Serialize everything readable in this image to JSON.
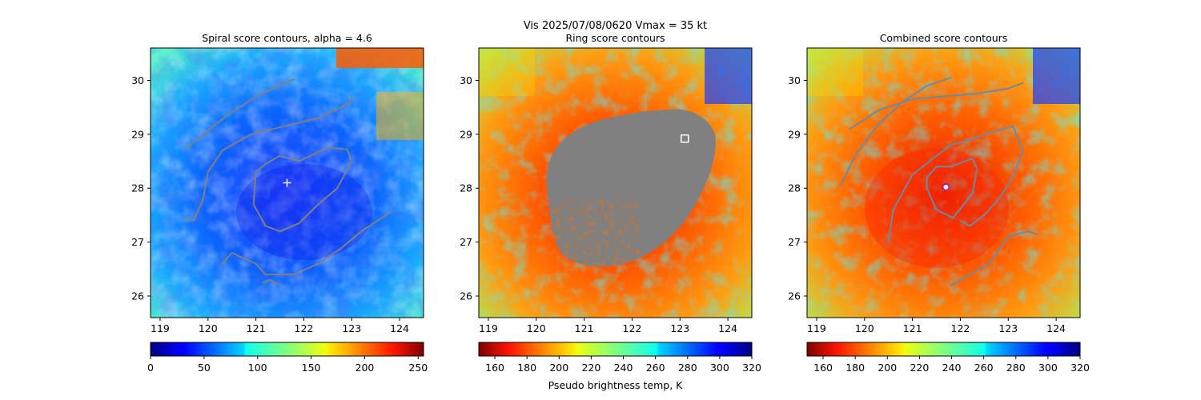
{
  "suptitle_line1": "Vis  2025/07/08/0620    Vmax = 35 kt",
  "colorbar_label": "Pseudo brightness temp, K",
  "chart_data": [
    {
      "type": "heatmap",
      "title": "Spiral score contours, alpha =  4.6",
      "colormap": "jet",
      "xlim": [
        118.8,
        124.5
      ],
      "ylim": [
        25.6,
        30.6
      ],
      "xticks": [
        119,
        120,
        121,
        122,
        123,
        124
      ],
      "yticks": [
        26,
        27,
        28,
        29,
        30
      ],
      "colorbar_range": [
        0,
        255
      ],
      "colorbar_reversed": false,
      "colorbar_ticks": [
        0,
        50,
        100,
        150,
        200,
        250
      ],
      "center_marker": {
        "x": 121.65,
        "y": 28.1,
        "symbol": "plus",
        "color": "#ffffff"
      },
      "contour_color": "#808080",
      "contours": [
        [
          [
            119.55,
            28.75
          ],
          [
            119.9,
            29.0
          ],
          [
            120.4,
            29.35
          ],
          [
            121.0,
            29.7
          ],
          [
            121.6,
            29.95
          ],
          [
            121.8,
            30.02
          ]
        ],
        [
          [
            119.5,
            27.45
          ],
          [
            119.7,
            27.4
          ],
          [
            119.9,
            27.8
          ],
          [
            120.0,
            28.3
          ],
          [
            120.3,
            28.7
          ],
          [
            120.9,
            29.0
          ],
          [
            121.6,
            29.15
          ],
          [
            122.3,
            29.3
          ],
          [
            123.0,
            29.6
          ],
          [
            123.0,
            29.7
          ]
        ],
        [
          [
            121.0,
            28.3
          ],
          [
            120.95,
            27.7
          ],
          [
            121.2,
            27.3
          ],
          [
            121.5,
            27.2
          ],
          [
            121.9,
            27.35
          ],
          [
            122.3,
            27.7
          ],
          [
            122.7,
            28.0
          ],
          [
            123.0,
            28.5
          ],
          [
            122.9,
            28.72
          ],
          [
            122.5,
            28.75
          ],
          [
            121.9,
            28.5
          ],
          [
            121.5,
            28.6
          ],
          [
            121.2,
            28.45
          ],
          [
            121.0,
            28.3
          ]
        ],
        [
          [
            120.3,
            26.6
          ],
          [
            120.5,
            26.8
          ],
          [
            121.0,
            26.6
          ],
          [
            121.2,
            26.4
          ],
          [
            121.8,
            26.4
          ],
          [
            122.3,
            26.6
          ],
          [
            122.8,
            26.9
          ],
          [
            123.2,
            27.2
          ],
          [
            123.8,
            27.55
          ]
        ],
        [
          [
            121.15,
            26.25
          ],
          [
            121.3,
            26.3
          ],
          [
            121.5,
            26.2
          ]
        ]
      ]
    },
    {
      "type": "heatmap",
      "title": "Ring score contours",
      "colormap": "jet_r",
      "xlim": [
        118.8,
        124.5
      ],
      "ylim": [
        25.6,
        30.6
      ],
      "xticks": [
        119,
        120,
        121,
        122,
        123,
        124
      ],
      "yticks": [
        26,
        27,
        28,
        29,
        30
      ],
      "colorbar_range": [
        150,
        320
      ],
      "colorbar_reversed": true,
      "colorbar_ticks": [
        160,
        180,
        200,
        220,
        240,
        260,
        280,
        300,
        320
      ],
      "center_marker": {
        "x": 123.1,
        "y": 28.92,
        "symbol": "square",
        "color": "#ffffff"
      },
      "masked_region_color": "#808080"
    },
    {
      "type": "heatmap",
      "title": "Combined score contours",
      "colormap": "jet_r",
      "xlim": [
        118.8,
        124.5
      ],
      "ylim": [
        25.6,
        30.6
      ],
      "xticks": [
        119,
        120,
        121,
        122,
        123,
        124
      ],
      "yticks": [
        26,
        27,
        28,
        29,
        30
      ],
      "colorbar_range": [
        150,
        320
      ],
      "colorbar_reversed": true,
      "colorbar_ticks": [
        160,
        180,
        200,
        220,
        240,
        260,
        280,
        300,
        320
      ],
      "center_marker": {
        "x": 121.7,
        "y": 28.02,
        "symbol": "circle",
        "color": "#c0148c"
      },
      "contour_color": "#6a8aa6",
      "contours": [
        [
          [
            119.5,
            28.05
          ],
          [
            119.8,
            28.6
          ],
          [
            120.3,
            29.2
          ],
          [
            120.8,
            29.6
          ],
          [
            121.3,
            29.9
          ],
          [
            121.8,
            30.05
          ]
        ],
        [
          [
            119.7,
            29.1
          ],
          [
            120.3,
            29.45
          ],
          [
            121.0,
            29.65
          ],
          [
            121.6,
            29.7
          ],
          [
            122.3,
            29.75
          ],
          [
            123.0,
            29.85
          ],
          [
            123.3,
            29.95
          ]
        ],
        [
          [
            120.5,
            27.0
          ],
          [
            120.6,
            27.6
          ],
          [
            121.0,
            28.25
          ],
          [
            121.5,
            28.6
          ],
          [
            121.8,
            28.8
          ],
          [
            122.2,
            28.9
          ],
          [
            122.7,
            29.05
          ],
          [
            123.1,
            29.15
          ],
          [
            123.3,
            28.7
          ],
          [
            123.1,
            28.2
          ],
          [
            122.8,
            27.8
          ],
          [
            122.5,
            27.5
          ],
          [
            122.2,
            27.3
          ],
          [
            122.0,
            27.4
          ]
        ],
        [
          [
            121.3,
            28.0
          ],
          [
            121.5,
            27.6
          ],
          [
            121.85,
            27.45
          ],
          [
            122.25,
            27.9
          ],
          [
            122.35,
            28.35
          ],
          [
            122.25,
            28.55
          ],
          [
            121.8,
            28.4
          ],
          [
            121.5,
            28.4
          ],
          [
            121.3,
            28.2
          ],
          [
            121.3,
            28.0
          ]
        ],
        [
          [
            121.8,
            26.2
          ],
          [
            122.6,
            26.6
          ],
          [
            123.0,
            27.1
          ],
          [
            123.4,
            27.2
          ],
          [
            123.6,
            27.15
          ]
        ]
      ]
    }
  ]
}
